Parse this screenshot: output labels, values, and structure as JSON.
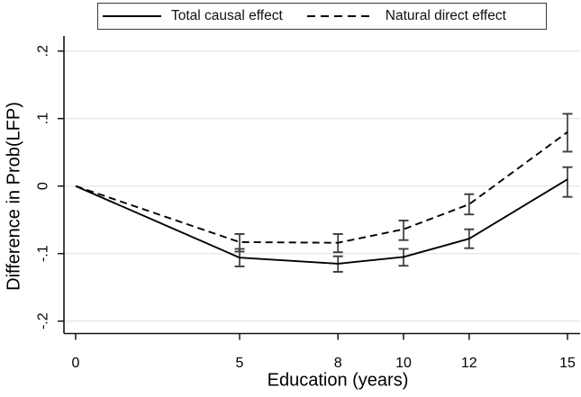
{
  "chart_data": {
    "type": "line",
    "title": "",
    "xlabel": "Education (years)",
    "ylabel": "Difference in Prob(LFP)",
    "x": [
      0,
      5,
      8,
      10,
      12,
      15
    ],
    "x_tick_labels": [
      "0",
      "5",
      "8",
      "10",
      "12",
      "15"
    ],
    "y_tick_values": [
      0.2,
      0.1,
      0,
      -0.1,
      -0.2
    ],
    "y_tick_labels": [
      ".2",
      ".1",
      "0",
      "-.1",
      "-.2"
    ],
    "xlim": [
      0,
      15
    ],
    "ylim": [
      -0.2,
      0.2
    ],
    "grid": "horizontal",
    "legend_position": "top-center",
    "error_bars": true,
    "series": [
      {
        "name": "Total causal effect",
        "line_style": "solid",
        "values": [
          0,
          -0.106,
          -0.115,
          -0.105,
          -0.078,
          0.01
        ],
        "ci_low": [
          null,
          -0.119,
          -0.127,
          -0.118,
          -0.092,
          -0.016
        ],
        "ci_high": [
          null,
          -0.093,
          -0.104,
          -0.093,
          -0.064,
          0.028
        ]
      },
      {
        "name": "Natural direct effect",
        "line_style": "dashed",
        "values": [
          0,
          -0.083,
          -0.084,
          -0.064,
          -0.027,
          0.08
        ],
        "ci_low": [
          null,
          -0.097,
          -0.098,
          -0.08,
          -0.042,
          0.051
        ],
        "ci_high": [
          null,
          -0.071,
          -0.071,
          -0.051,
          -0.012,
          0.107
        ]
      }
    ]
  },
  "colors": {
    "series_line": "#000000",
    "error_bar": "#3d3d3d",
    "grid_line": "#e8e8e8",
    "axis_line": "#141414",
    "background": "#ffffff"
  }
}
